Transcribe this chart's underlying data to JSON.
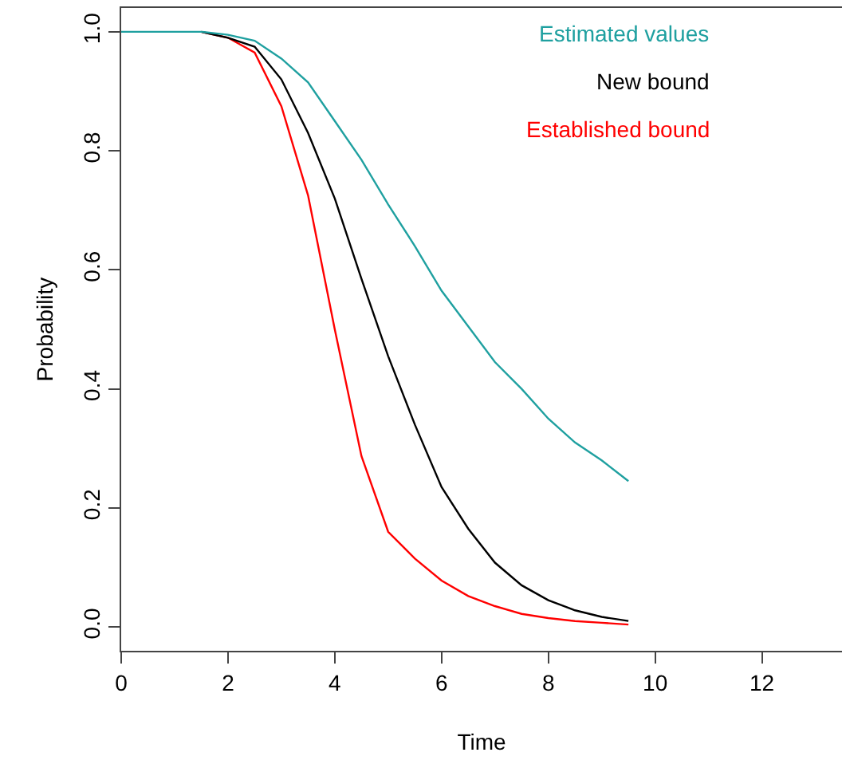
{
  "chart_data": {
    "type": "line",
    "xlabel": "Time",
    "ylabel": "Probability",
    "x": [
      0,
      0.5,
      1,
      1.5,
      2,
      2.5,
      3,
      3.5,
      4,
      4.5,
      5,
      5.5,
      6,
      6.5,
      7,
      7.5,
      8,
      8.5,
      9,
      9.5
    ],
    "series": [
      {
        "name": "Estimated values",
        "color": "#1fa0a0",
        "values": [
          1.0,
          1.0,
          1.0,
          1.0,
          0.995,
          0.985,
          0.955,
          0.915,
          0.85,
          0.785,
          0.71,
          0.64,
          0.565,
          0.505,
          0.445,
          0.4,
          0.35,
          0.31,
          0.28,
          0.245
        ]
      },
      {
        "name": "New bound",
        "color": "#000000",
        "values": [
          null,
          null,
          null,
          1.0,
          0.99,
          0.975,
          0.92,
          0.83,
          0.72,
          0.585,
          0.455,
          0.34,
          0.235,
          0.165,
          0.108,
          0.07,
          0.045,
          0.028,
          0.017,
          0.01
        ]
      },
      {
        "name": "Established bound",
        "color": "#ff0000",
        "values": [
          null,
          null,
          null,
          1.0,
          0.99,
          0.965,
          0.875,
          0.725,
          0.5,
          0.287,
          0.16,
          0.115,
          0.078,
          0.052,
          0.035,
          0.022,
          0.015,
          0.01,
          0.007,
          0.004
        ]
      }
    ],
    "xlim": [
      0,
      13.5
    ],
    "xticks": [
      0,
      2,
      4,
      6,
      8,
      10,
      12
    ],
    "ylim": [
      -0.04,
      1.04
    ],
    "yticks": [
      {
        "value": 0,
        "label": "0.0"
      },
      {
        "value": 0.2,
        "label": "0.2"
      },
      {
        "value": 0.4,
        "label": "0.4"
      },
      {
        "value": 0.6,
        "label": "0.6"
      },
      {
        "value": 0.8,
        "label": "0.8"
      },
      {
        "value": 1,
        "label": "1.0"
      }
    ],
    "legend": "top right",
    "marker": "none",
    "line_style": "solid"
  }
}
